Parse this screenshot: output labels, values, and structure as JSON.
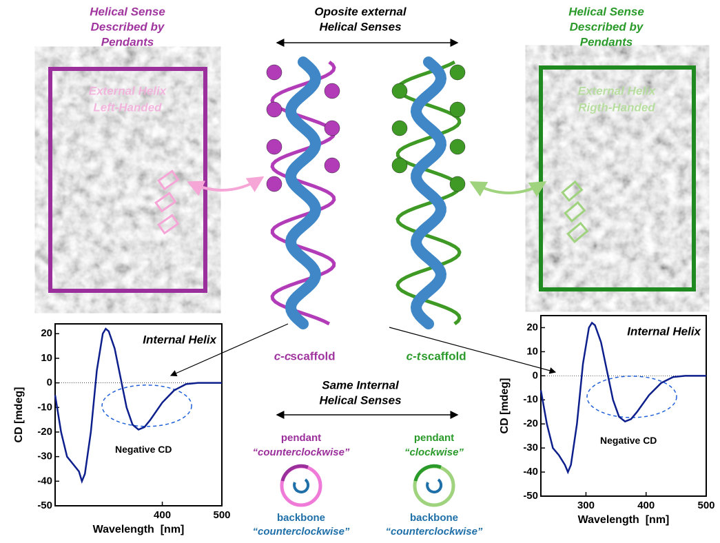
{
  "header_left": [
    "Helical Sense",
    "Described by",
    "Pendants"
  ],
  "header_center": [
    "Oposite external",
    "Helical Senses"
  ],
  "header_right": [
    "Helical Sense",
    "Described by",
    "Pendants"
  ],
  "image_left": [
    "External Helix",
    "Left-Handed"
  ],
  "image_right": [
    "External Helix",
    "Rigth-Handed"
  ],
  "scaffold_left": {
    "prefix": "c-c",
    "suffix": "scaffold"
  },
  "scaffold_right": {
    "prefix": "c-t",
    "suffix": "scaffold"
  },
  "internal": [
    "Same Internal",
    "Helical Senses"
  ],
  "rotation_left": {
    "pendant": "pendant",
    "pendant_sense": "“counterclockwise”",
    "backbone": "backbone",
    "backbone_sense": "“counterclockwise”"
  },
  "rotation_right": {
    "pendant": "pendant",
    "pendant_sense": "“clockwise”",
    "backbone": "backbone",
    "backbone_sense": "“counterclockwise”"
  },
  "chart_data": [
    {
      "type": "line",
      "annotation": "Internal Helix",
      "note": "Negative CD",
      "xlabel": "Wavelength  [nm]",
      "ylabel": "CD [mdeg]",
      "x": [
        220,
        230,
        240,
        250,
        260,
        265,
        270,
        280,
        290,
        300,
        305,
        310,
        320,
        330,
        340,
        350,
        360,
        370,
        380,
        400,
        420,
        440,
        460,
        500
      ],
      "values": [
        -5,
        -20,
        -30,
        -33,
        -36,
        -40,
        -37,
        -20,
        5,
        20,
        22,
        21,
        14,
        2,
        -10,
        -17,
        -19,
        -18,
        -15,
        -8,
        -3,
        -0.5,
        0,
        0
      ],
      "color": "#0d1f8c",
      "xlim": [
        220,
        500
      ],
      "ylim": [
        -50,
        24
      ],
      "xticks": [
        400,
        500
      ],
      "yticks": [
        20,
        10,
        0,
        -10,
        -20,
        -30,
        -40,
        -50
      ]
    },
    {
      "type": "line",
      "annotation": "Internal Helix",
      "note": "Negative CD",
      "xlabel": "Wavelength  [nm]",
      "ylabel": "CD [mdeg]",
      "x": [
        225,
        235,
        245,
        255,
        265,
        270,
        275,
        285,
        295,
        305,
        310,
        315,
        325,
        335,
        345,
        355,
        365,
        375,
        385,
        405,
        425,
        445,
        465,
        500
      ],
      "values": [
        -6,
        -20,
        -30,
        -33,
        -37,
        -40,
        -37,
        -20,
        5,
        20,
        22,
        21,
        14,
        2,
        -10,
        -17,
        -19,
        -18,
        -15,
        -8,
        -3,
        -0.5,
        0,
        0
      ],
      "color": "#0d1f8c",
      "xlim": [
        225,
        500
      ],
      "ylim": [
        -50,
        25
      ],
      "xticks": [
        300,
        400,
        500
      ],
      "yticks": [
        20,
        10,
        0,
        -10,
        -20,
        -30,
        -40,
        -50
      ]
    }
  ]
}
